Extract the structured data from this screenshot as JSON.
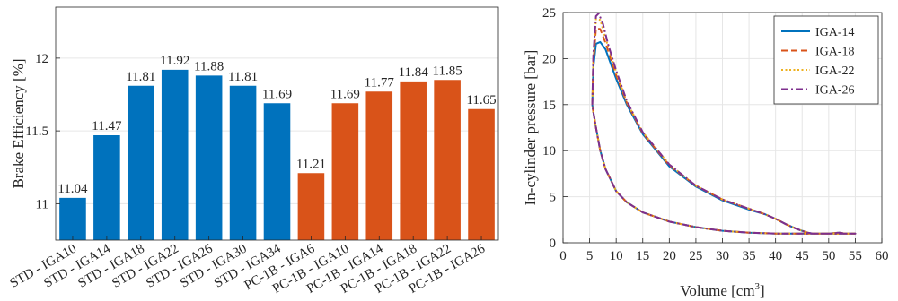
{
  "chart_data": [
    {
      "type": "bar",
      "title": "",
      "xlabel": "",
      "ylabel": "Brake Efficiency [%]",
      "ylim": [
        10.75,
        12.35
      ],
      "yticks": [
        11,
        11.5,
        12
      ],
      "ytick_labels": [
        "11",
        "11.5",
        "12"
      ],
      "grid": true,
      "categories": [
        "STD - IGA10",
        "STD - IGA14",
        "STD - IGA18",
        "STD - IGA22",
        "STD - IGA26",
        "STD - IGA30",
        "STD - IGA34",
        "PC-1B - IGA6",
        "PC-1B - IGA10",
        "PC-1B - IGA14",
        "PC-1B - IGA18",
        "PC-1B - IGA22",
        "PC-1B - IGA26"
      ],
      "values": [
        11.04,
        11.47,
        11.81,
        11.92,
        11.88,
        11.81,
        11.69,
        11.21,
        11.69,
        11.77,
        11.84,
        11.85,
        11.65
      ],
      "value_labels": [
        "11.04",
        "11.47",
        "11.81",
        "11.92",
        "11.88",
        "11.81",
        "11.69",
        "11.21",
        "11.69",
        "11.77",
        "11.84",
        "11.85",
        "11.65"
      ],
      "bar_colors": [
        "#0072BD",
        "#0072BD",
        "#0072BD",
        "#0072BD",
        "#0072BD",
        "#0072BD",
        "#0072BD",
        "#D95319",
        "#D95319",
        "#D95319",
        "#D95319",
        "#D95319",
        "#D95319"
      ]
    },
    {
      "type": "line",
      "title": "",
      "xlabel": "Volume [cm",
      "xlabel_sup": "3",
      "xlabel_end": "]",
      "ylabel": "In-cylinder pressure [bar]",
      "xlim": [
        0,
        60
      ],
      "ylim": [
        0,
        25
      ],
      "xticks": [
        0,
        5,
        10,
        15,
        20,
        25,
        30,
        35,
        40,
        45,
        50,
        55,
        60
      ],
      "xtick_labels": [
        "0",
        "5",
        "10",
        "15",
        "20",
        "25",
        "30",
        "35",
        "40",
        "45",
        "50",
        "55",
        "60"
      ],
      "yticks": [
        0,
        5,
        10,
        15,
        20,
        25
      ],
      "ytick_labels": [
        "0",
        "5",
        "10",
        "15",
        "20",
        "25"
      ],
      "grid": true,
      "legend": "top-right",
      "series": [
        {
          "name": "IGA-14",
          "color": "#0072BD",
          "dash": "solid",
          "x": [
            5.5,
            5.7,
            6.2,
            7.0,
            8.0,
            10,
            12,
            15,
            20,
            25,
            30,
            35,
            38,
            40,
            42,
            44,
            46,
            47,
            48,
            50,
            52,
            53,
            54,
            55,
            53,
            50,
            47,
            44,
            40,
            35,
            30,
            25,
            20,
            15,
            12,
            10,
            8,
            7,
            6.2,
            5.7,
            5.5
          ],
          "y": [
            15.0,
            19.0,
            21.6,
            21.8,
            21.0,
            17.8,
            15.0,
            11.8,
            8.3,
            6.1,
            4.6,
            3.6,
            3.1,
            2.6,
            2.0,
            1.5,
            1.1,
            1.0,
            1.0,
            1.0,
            1.1,
            1.0,
            1.0,
            1.0,
            1.0,
            1.0,
            1.0,
            1.0,
            1.0,
            1.1,
            1.3,
            1.7,
            2.3,
            3.3,
            4.4,
            5.6,
            8.0,
            10.0,
            12.5,
            14.2,
            15.0
          ]
        },
        {
          "name": "IGA-18",
          "color": "#D95319",
          "dash": "dashed",
          "x": [
            5.5,
            5.7,
            6.2,
            7.0,
            8.0,
            10,
            12,
            15,
            20,
            25,
            30,
            35,
            38,
            40,
            42,
            44,
            46,
            47,
            48,
            50,
            52,
            53,
            54,
            55,
            53,
            50,
            47,
            44,
            40,
            35,
            30,
            25,
            20,
            15,
            12,
            10,
            8,
            7,
            6.2,
            5.7,
            5.5
          ],
          "y": [
            15.0,
            19.6,
            23.3,
            23.2,
            21.7,
            18.2,
            15.2,
            11.9,
            8.4,
            6.2,
            4.7,
            3.7,
            3.1,
            2.6,
            2.0,
            1.5,
            1.1,
            1.0,
            1.0,
            1.0,
            1.1,
            1.0,
            1.0,
            1.0,
            1.0,
            1.0,
            1.0,
            1.0,
            1.0,
            1.1,
            1.3,
            1.7,
            2.3,
            3.3,
            4.4,
            5.6,
            8.0,
            10.0,
            12.5,
            14.2,
            15.0
          ]
        },
        {
          "name": "IGA-22",
          "color": "#EDB120",
          "dash": "dotted",
          "x": [
            5.5,
            5.7,
            6.2,
            7.0,
            8.0,
            10,
            12,
            15,
            20,
            25,
            30,
            35,
            38,
            40,
            42,
            44,
            46,
            47,
            48,
            50,
            52,
            53,
            54,
            55,
            53,
            50,
            47,
            44,
            40,
            35,
            30,
            25,
            20,
            15,
            12,
            10,
            8,
            7,
            6.2,
            5.7,
            5.5
          ],
          "y": [
            15.0,
            20.0,
            24.3,
            24.2,
            22.2,
            18.5,
            15.3,
            12.0,
            8.5,
            6.2,
            4.7,
            3.7,
            3.1,
            2.6,
            2.0,
            1.5,
            1.1,
            1.0,
            1.0,
            1.0,
            1.1,
            1.0,
            1.0,
            1.0,
            1.0,
            1.0,
            1.0,
            1.0,
            1.0,
            1.1,
            1.3,
            1.7,
            2.3,
            3.3,
            4.4,
            5.6,
            8.0,
            10.0,
            12.5,
            14.2,
            15.0
          ]
        },
        {
          "name": "IGA-26",
          "color": "#7E2F8E",
          "dash": "dashdot",
          "x": [
            5.5,
            5.7,
            6.2,
            6.7,
            7.5,
            8.5,
            10,
            12,
            15,
            20,
            25,
            30,
            35,
            38,
            40,
            42,
            44,
            46,
            47,
            48,
            50,
            52,
            53,
            54,
            55,
            53,
            50,
            47,
            44,
            40,
            35,
            30,
            25,
            20,
            15,
            12,
            10,
            8,
            7,
            6.2,
            5.7,
            5.5
          ],
          "y": [
            15.0,
            20.5,
            24.6,
            24.9,
            23.8,
            21.5,
            18.7,
            15.4,
            12.0,
            8.5,
            6.2,
            4.7,
            3.7,
            3.1,
            2.6,
            2.0,
            1.5,
            1.1,
            1.0,
            1.0,
            1.0,
            1.1,
            1.0,
            1.0,
            1.0,
            1.0,
            1.0,
            1.0,
            1.0,
            1.0,
            1.1,
            1.3,
            1.7,
            2.3,
            3.3,
            4.4,
            5.6,
            8.0,
            10.0,
            12.5,
            14.2,
            15.0
          ]
        }
      ]
    }
  ]
}
